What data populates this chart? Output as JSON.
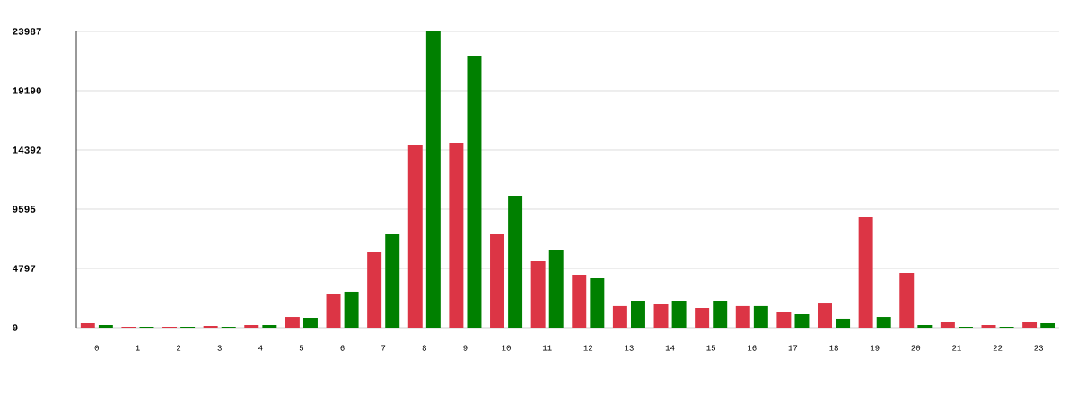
{
  "chart_data": {
    "type": "bar",
    "categories": [
      "0",
      "1",
      "2",
      "3",
      "4",
      "5",
      "6",
      "7",
      "8",
      "9",
      "10",
      "11",
      "12",
      "13",
      "14",
      "15",
      "16",
      "17",
      "18",
      "19",
      "20",
      "21",
      "22",
      "23"
    ],
    "series": [
      {
        "color": "#dc3545",
        "values": [
          360,
          70,
          70,
          150,
          220,
          870,
          2760,
          6110,
          14760,
          14970,
          7560,
          5380,
          4290,
          1750,
          1890,
          1600,
          1750,
          1240,
          1960,
          8940,
          4430,
          440,
          220,
          440
        ]
      },
      {
        "color": "#008000",
        "values": [
          220,
          70,
          70,
          70,
          220,
          800,
          2910,
          7560,
          23987,
          22030,
          10690,
          6250,
          4000,
          2180,
          2180,
          2180,
          1750,
          1090,
          730,
          870,
          220,
          70,
          70,
          360
        ]
      }
    ],
    "ylim": [
      0,
      23987
    ],
    "yticks": [
      0,
      4797,
      9595,
      14392,
      19190,
      23987
    ],
    "grid": "y"
  }
}
